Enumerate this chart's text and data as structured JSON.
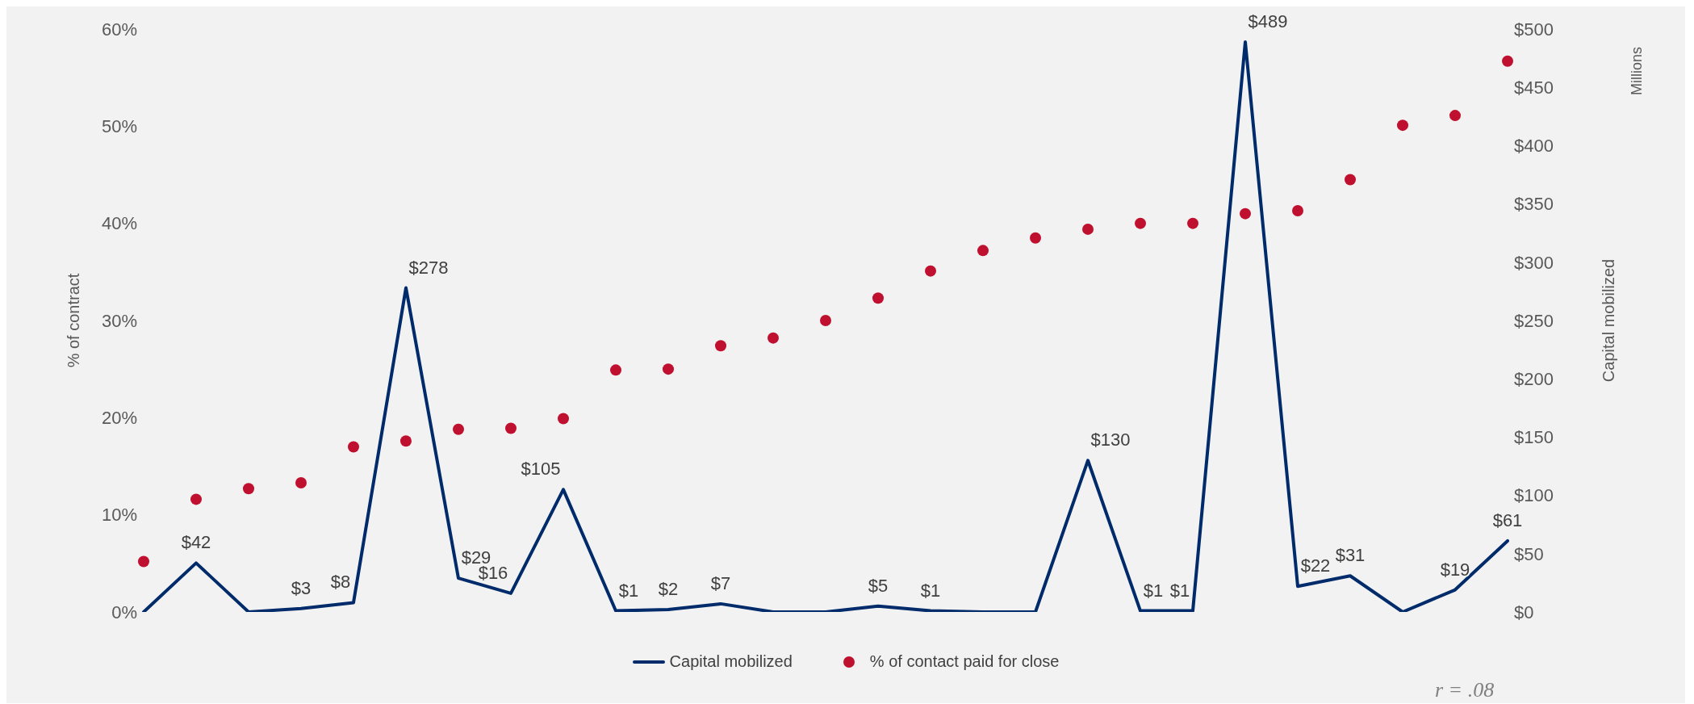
{
  "chart_data": {
    "type": "line",
    "ylabel": "% of contract",
    "y2label": "Capital mobilized",
    "categories": [
      null,
      null,
      null,
      null,
      null,
      null,
      null,
      null,
      null,
      null,
      null,
      null,
      null,
      null,
      null,
      null,
      null,
      null,
      null,
      null,
      null,
      null,
      null,
      null,
      null,
      null,
      null
    ],
    "series": [
      {
        "name": "Capital mobilized",
        "axis": "y2",
        "color": "#002b6b",
        "values": [
          0,
          42,
          0,
          3,
          8,
          278,
          29,
          16,
          105,
          1,
          2,
          7,
          0,
          0,
          5,
          1,
          0,
          0,
          130,
          1,
          1,
          489,
          22,
          31,
          0,
          19,
          61
        ],
        "value_labels": [
          null,
          "$42",
          null,
          "$3",
          "$8",
          "$278",
          "$29",
          "$16",
          "$105",
          "$1",
          "$2",
          "$7",
          null,
          null,
          "$5",
          "$1",
          null,
          null,
          "$130",
          "$1",
          "$1",
          "$489",
          "$22",
          "$31",
          null,
          "$19",
          "$61"
        ]
      },
      {
        "name": "% of contact paid for close",
        "type": "scatter",
        "color": "#c0102f",
        "values": [
          5.2,
          11.6,
          12.7,
          13.3,
          17.0,
          17.6,
          18.8,
          18.9,
          19.9,
          24.9,
          25.0,
          27.4,
          28.2,
          30.0,
          32.3,
          35.1,
          37.2,
          38.5,
          39.4,
          40.0,
          40.0,
          41.0,
          41.3,
          44.5,
          50.1,
          51.1,
          56.7
        ]
      }
    ],
    "ylim": [
      0,
      60
    ],
    "yticks": [
      {
        "value": 0,
        "label": "0%"
      },
      {
        "value": 10,
        "label": "10%"
      },
      {
        "value": 20,
        "label": "20%"
      },
      {
        "value": 30,
        "label": "30%"
      },
      {
        "value": 40,
        "label": "40%"
      },
      {
        "value": 50,
        "label": "50%"
      },
      {
        "value": 60,
        "label": "60%"
      }
    ],
    "y2lim": [
      0,
      500
    ],
    "y2ticks": [
      {
        "value": 0,
        "label": "$0"
      },
      {
        "value": 50,
        "label": "$50"
      },
      {
        "value": 100,
        "label": "$100"
      },
      {
        "value": 150,
        "label": "$150"
      },
      {
        "value": 200,
        "label": "$200"
      },
      {
        "value": 250,
        "label": "$250"
      },
      {
        "value": 300,
        "label": "$300"
      },
      {
        "value": 350,
        "label": "$350"
      },
      {
        "value": 400,
        "label": "$400"
      },
      {
        "value": 450,
        "label": "$450"
      },
      {
        "value": 500,
        "label": "$500"
      }
    ],
    "grid": false,
    "legend": "bottom",
    "annotations": [
      "Millions",
      "r = .08"
    ]
  }
}
